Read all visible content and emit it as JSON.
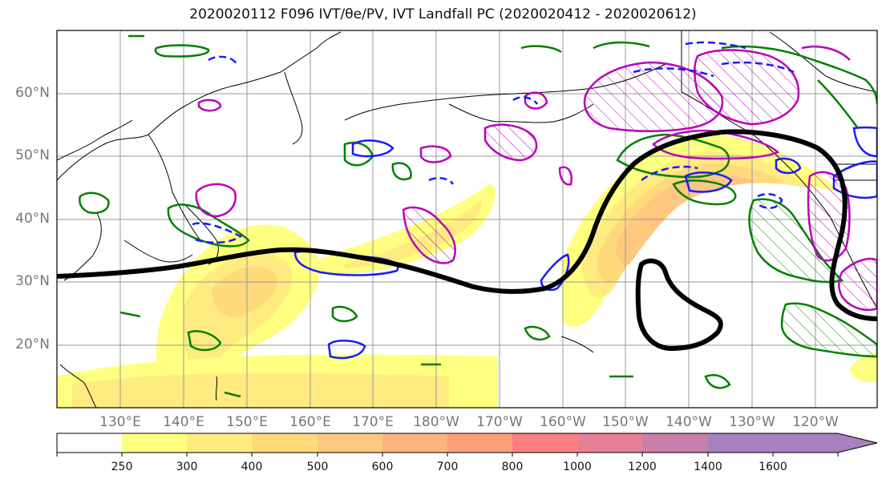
{
  "title": "2020020112 F096 IVT/θe/PV, IVT Landfall PC (2020020412 - 2020020612)",
  "map": {
    "lat_labels": [
      "60°N",
      "50°N",
      "40°N",
      "30°N",
      "20°N"
    ],
    "lon_labels": [
      "130°E",
      "140°E",
      "150°E",
      "160°E",
      "170°E",
      "180°W",
      "170°W",
      "160°W",
      "150°W",
      "140°W",
      "130°W",
      "120°W"
    ],
    "colors": {
      "coast": "#000000",
      "grid": "#999999",
      "ivt_principal_component": "#000000",
      "theta_e_contour": "#1a1aff",
      "pv_contour": "#bb00bb",
      "green_contour": "#008000"
    }
  },
  "colorbar": {
    "levels": [
      "250",
      "300",
      "400",
      "500",
      "600",
      "700",
      "800",
      "1000",
      "1200",
      "1400",
      "1600"
    ],
    "colors": [
      "#ffffff",
      "#ffff80",
      "#ffeb80",
      "#ffd97a",
      "#ffc780",
      "#ffb380",
      "#ff9f7a",
      "#ff8080",
      "#e88095",
      "#c880a8",
      "#a880c0"
    ]
  }
}
